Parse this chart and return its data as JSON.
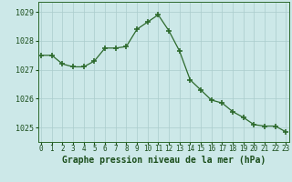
{
  "x": [
    0,
    1,
    2,
    3,
    4,
    5,
    6,
    7,
    8,
    9,
    10,
    11,
    12,
    13,
    14,
    15,
    16,
    17,
    18,
    19,
    20,
    21,
    22,
    23
  ],
  "y": [
    1027.5,
    1027.5,
    1027.2,
    1027.1,
    1027.1,
    1027.3,
    1027.75,
    1027.75,
    1027.8,
    1028.4,
    1028.65,
    1028.9,
    1028.35,
    1027.65,
    1026.65,
    1026.3,
    1025.95,
    1025.85,
    1025.55,
    1025.35,
    1025.1,
    1025.05,
    1025.05,
    1024.85
  ],
  "line_color": "#2d6a2d",
  "marker": "D",
  "marker_size": 2.2,
  "bg_color": "#cce8e8",
  "grid_color": "#aacccc",
  "title": "Graphe pression niveau de la mer (hPa)",
  "ylim_min": 1024.5,
  "ylim_max": 1029.35,
  "yticks": [
    1025,
    1026,
    1027,
    1028,
    1029
  ],
  "xticks": [
    0,
    1,
    2,
    3,
    4,
    5,
    6,
    7,
    8,
    9,
    10,
    11,
    12,
    13,
    14,
    15,
    16,
    17,
    18,
    19,
    20,
    21,
    22,
    23
  ],
  "xlabel_fontsize": 5.5,
  "ylabel_fontsize": 6.0,
  "title_fontsize": 7.0,
  "title_color": "#1a4d1a",
  "tick_color": "#1a4d1a",
  "axis_color": "#2d6a2d"
}
